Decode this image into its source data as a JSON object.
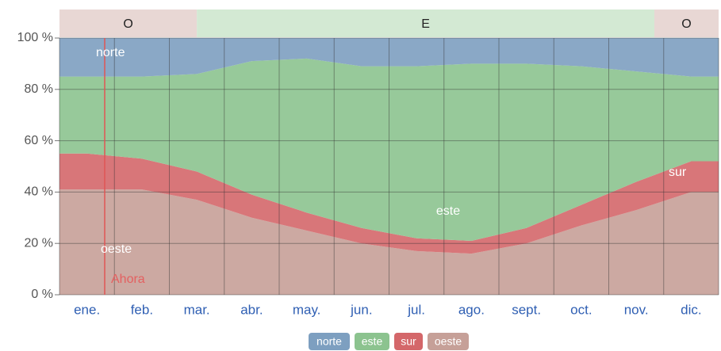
{
  "chart_data": {
    "type": "stacked_area",
    "categories": [
      "ene.",
      "feb.",
      "mar.",
      "abr.",
      "may.",
      "jun.",
      "jul.",
      "ago.",
      "sept.",
      "oct.",
      "nov.",
      "dic."
    ],
    "series": [
      {
        "name": "oeste",
        "color": "#c6a098",
        "values": [
          41,
          41,
          37,
          30,
          25,
          20,
          17,
          16,
          20,
          27,
          33,
          40
        ]
      },
      {
        "name": "sur",
        "color": "#d4676a",
        "values": [
          14,
          12,
          11,
          9,
          7,
          6,
          5,
          5,
          6,
          8,
          11,
          12
        ]
      },
      {
        "name": "este",
        "color": "#8cc38f",
        "values": [
          30,
          32,
          38,
          52,
          60,
          63,
          67,
          69,
          64,
          54,
          43,
          33
        ]
      },
      {
        "name": "norte",
        "color": "#7d9fc0",
        "values": [
          15,
          15,
          14,
          9,
          8,
          11,
          11,
          10,
          10,
          11,
          13,
          15
        ]
      }
    ],
    "ylim": [
      0,
      100
    ],
    "yticks": [
      {
        "value": 0,
        "label": "0 %"
      },
      {
        "value": 20,
        "label": "20 %"
      },
      {
        "value": 40,
        "label": "40 %"
      },
      {
        "value": 60,
        "label": "60 %"
      },
      {
        "value": 80,
        "label": "80 %"
      },
      {
        "value": 100,
        "label": "100 %"
      }
    ],
    "grid": true,
    "dominant_bands": [
      "O",
      "E",
      "O"
    ],
    "now_label": "Ahora"
  }
}
